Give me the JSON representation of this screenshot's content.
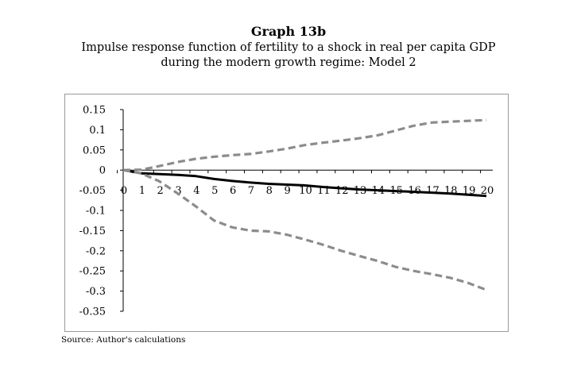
{
  "figure": {
    "title": "Graph 13b",
    "subtitle_line1": "Impulse response function of fertility to a shock in real per capita GDP",
    "subtitle_line2": "during the modern growth regime: Model 2",
    "source": "Source: Author's calculations"
  },
  "chart_data": {
    "type": "line",
    "title": "Impulse response function of fertility to a shock in real per capita GDP during the modern growth regime: Model 2",
    "xlabel": "",
    "ylabel": "",
    "x": [
      0,
      1,
      2,
      3,
      4,
      5,
      6,
      7,
      8,
      9,
      10,
      11,
      12,
      13,
      14,
      15,
      16,
      17,
      18,
      19,
      20
    ],
    "xlim": [
      0,
      20
    ],
    "ylim": [
      -0.35,
      0.15
    ],
    "yticks": [
      0.15,
      0.1,
      0.05,
      0,
      -0.05,
      -0.1,
      -0.15,
      -0.2,
      -0.25,
      -0.3,
      -0.35
    ],
    "ytick_labels": [
      "0.15",
      "0.1",
      "0.05",
      "0",
      "-0.05",
      "-0.1",
      "-0.15",
      "-0.2",
      "-0.25",
      "-0.3",
      "-0.35"
    ],
    "xtick_labels": [
      "0",
      "1",
      "2",
      "3",
      "4",
      "5",
      "6",
      "7",
      "8",
      "9",
      "10",
      "11",
      "12",
      "13",
      "14",
      "15",
      "16",
      "17",
      "18",
      "19",
      "20"
    ],
    "grid": false,
    "legend": "none",
    "series": [
      {
        "name": "Upper bound",
        "style": "dashed",
        "color": "#8c8c8c",
        "values": [
          0,
          0.001,
          0.01,
          0.02,
          0.028,
          0.033,
          0.037,
          0.04,
          0.046,
          0.053,
          0.062,
          0.068,
          0.073,
          0.079,
          0.086,
          0.098,
          0.11,
          0.118,
          0.12,
          0.122,
          0.124
        ]
      },
      {
        "name": "Impulse response",
        "style": "solid",
        "color": "#000000",
        "values": [
          0,
          -0.008,
          -0.01,
          -0.012,
          -0.015,
          -0.022,
          -0.027,
          -0.031,
          -0.034,
          -0.036,
          -0.038,
          -0.042,
          -0.045,
          -0.048,
          -0.05,
          -0.052,
          -0.054,
          -0.056,
          -0.058,
          -0.061,
          -0.064
        ]
      },
      {
        "name": "Lower bound",
        "style": "dashed",
        "color": "#8c8c8c",
        "values": [
          0,
          -0.008,
          -0.028,
          -0.058,
          -0.09,
          -0.125,
          -0.142,
          -0.15,
          -0.152,
          -0.16,
          -0.172,
          -0.185,
          -0.2,
          -0.213,
          -0.225,
          -0.24,
          -0.25,
          -0.258,
          -0.267,
          -0.28,
          -0.297
        ]
      }
    ]
  }
}
